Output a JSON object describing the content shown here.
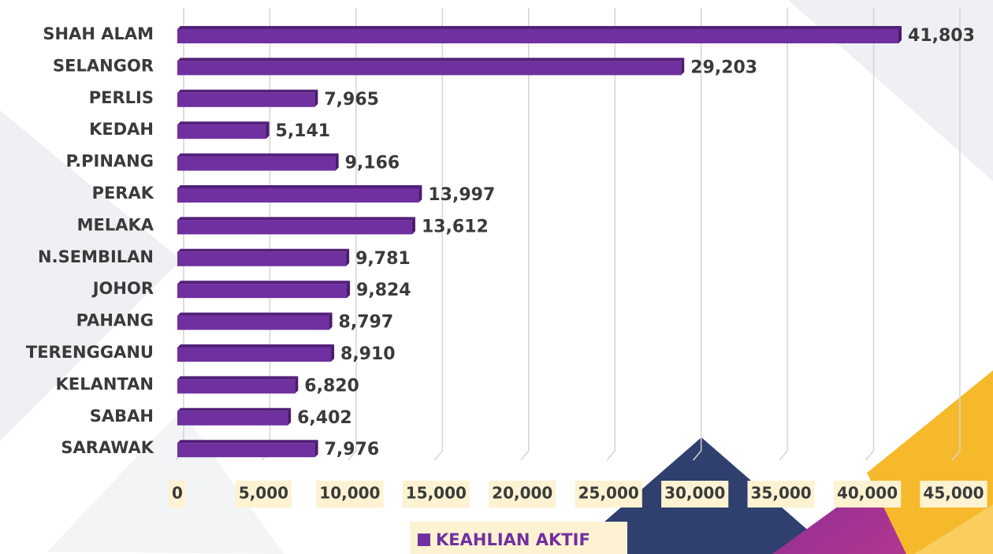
{
  "chart_data": {
    "type": "bar",
    "orientation": "horizontal",
    "categories": [
      "SHAH ALAM",
      "SELANGOR",
      "PERLIS",
      "KEDAH",
      "P.PINANG",
      "PERAK",
      "MELAKA",
      "N.SEMBILAN",
      "JOHOR",
      "PAHANG",
      "TERENGGANU",
      "KELANTAN",
      "SABAH",
      "SARAWAK"
    ],
    "series": [
      {
        "name": "KEAHLIAN AKTIF",
        "color": "#7030a0",
        "values": [
          41803,
          29203,
          7965,
          5141,
          9166,
          13997,
          13612,
          9781,
          9824,
          8797,
          8910,
          6820,
          6402,
          7976
        ],
        "value_labels": [
          "41,803",
          "29,203",
          "7,965",
          "5,141",
          "9,166",
          "13,997",
          "13,612",
          "9,781",
          "9,824",
          "8,797",
          "8,910",
          "6,820",
          "6,402",
          "7,976"
        ]
      }
    ],
    "xlim": [
      0,
      45000
    ],
    "xticks": [
      0,
      {
        "value": 5000,
        "label": "5,000"
      },
      {
        "value": 10000,
        "label": "10,000"
      },
      {
        "value": 15000,
        "label": "15,000"
      },
      {
        "value": 20000,
        "label": "20,000"
      },
      {
        "value": 25000,
        "label": "25,000"
      },
      {
        "value": 30000,
        "label": "30,000"
      },
      {
        "value": 35000,
        "label": "35,000"
      },
      {
        "value": 40000,
        "label": "40,000"
      },
      {
        "value": 45000,
        "label": "45,000"
      }
    ],
    "grid": true,
    "legend": "bottom"
  }
}
